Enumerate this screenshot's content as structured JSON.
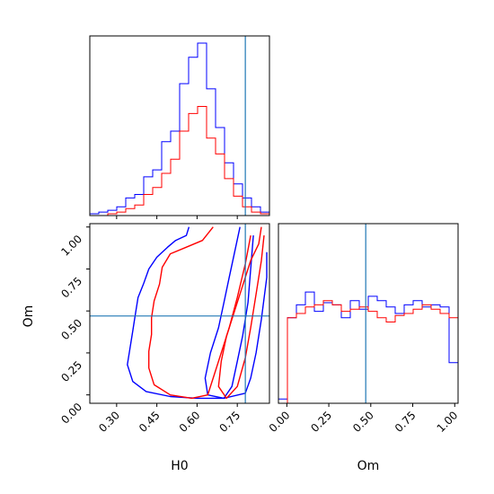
{
  "colors": {
    "series1": "#0000ff",
    "series2": "#ff0000",
    "truth": "#1f77b4",
    "frame": "#000000"
  },
  "chart_data": [
    {
      "type": "histogram",
      "panel": "H0 marginal",
      "xlim": [
        0.2,
        0.87
      ],
      "truth": 0.78,
      "bin_edges": [
        0.2,
        0.2335,
        0.267,
        0.3005,
        0.334,
        0.3675,
        0.401,
        0.4345,
        0.468,
        0.5015,
        0.535,
        0.5685,
        0.602,
        0.6355,
        0.669,
        0.7025,
        0.736,
        0.7695,
        0.803,
        0.8365,
        0.87
      ],
      "series": [
        {
          "color": "blue",
          "values": [
            0.01,
            0.02,
            0.03,
            0.05,
            0.1,
            0.12,
            0.22,
            0.26,
            0.42,
            0.48,
            0.75,
            0.9,
            0.98,
            0.72,
            0.5,
            0.3,
            0.18,
            0.1,
            0.05,
            0.02
          ]
        },
        {
          "color": "red",
          "values": [
            0.0,
            0.0,
            0.01,
            0.02,
            0.04,
            0.06,
            0.12,
            0.16,
            0.24,
            0.32,
            0.48,
            0.58,
            0.62,
            0.44,
            0.35,
            0.21,
            0.11,
            0.05,
            0.02,
            0.01
          ]
        }
      ]
    },
    {
      "type": "contour",
      "panel": "H0 vs Om",
      "xlabel": "H0",
      "ylabel": "Om",
      "xlim": [
        0.2,
        0.87
      ],
      "ylim": [
        -0.05,
        1.02
      ],
      "xticks": [
        "0.30",
        "0.45",
        "0.60",
        "0.75"
      ],
      "yticks": [
        "0.00",
        "0.25",
        "0.50",
        "0.75",
        "1.00"
      ],
      "truth": {
        "x": 0.78,
        "y": 0.47
      },
      "contours": [
        {
          "color": "blue",
          "level": "outer",
          "points": [
            [
              0.57,
              1.0
            ],
            [
              0.56,
              0.95
            ],
            [
              0.52,
              0.92
            ],
            [
              0.49,
              0.88
            ],
            [
              0.45,
              0.82
            ],
            [
              0.42,
              0.75
            ],
            [
              0.4,
              0.66
            ],
            [
              0.38,
              0.58
            ],
            [
              0.37,
              0.48
            ],
            [
              0.36,
              0.38
            ],
            [
              0.35,
              0.28
            ],
            [
              0.34,
              0.18
            ],
            [
              0.36,
              0.08
            ],
            [
              0.41,
              0.02
            ],
            [
              0.5,
              -0.01
            ],
            [
              0.6,
              -0.02
            ],
            [
              0.7,
              -0.02
            ],
            [
              0.78,
              0.01
            ],
            [
              0.8,
              0.1
            ],
            [
              0.82,
              0.25
            ],
            [
              0.84,
              0.45
            ],
            [
              0.86,
              0.7
            ],
            [
              0.86,
              0.85
            ]
          ]
        },
        {
          "color": "blue",
          "level": "inner",
          "points": [
            [
              0.76,
              1.0
            ],
            [
              0.74,
              0.85
            ],
            [
              0.72,
              0.7
            ],
            [
              0.7,
              0.55
            ],
            [
              0.68,
              0.4
            ],
            [
              0.65,
              0.25
            ],
            [
              0.63,
              0.1
            ],
            [
              0.64,
              0.0
            ],
            [
              0.7,
              -0.02
            ],
            [
              0.73,
              0.05
            ],
            [
              0.75,
              0.2
            ],
            [
              0.77,
              0.35
            ],
            [
              0.79,
              0.55
            ],
            [
              0.8,
              0.75
            ],
            [
              0.81,
              0.95
            ]
          ]
        },
        {
          "color": "red",
          "level": "outer",
          "points": [
            [
              0.66,
              1.0
            ],
            [
              0.62,
              0.92
            ],
            [
              0.56,
              0.88
            ],
            [
              0.5,
              0.84
            ],
            [
              0.47,
              0.76
            ],
            [
              0.46,
              0.66
            ],
            [
              0.44,
              0.56
            ],
            [
              0.43,
              0.46
            ],
            [
              0.43,
              0.36
            ],
            [
              0.42,
              0.26
            ],
            [
              0.42,
              0.16
            ],
            [
              0.44,
              0.06
            ],
            [
              0.5,
              0.0
            ],
            [
              0.58,
              -0.02
            ],
            [
              0.64,
              0.0
            ],
            [
              0.66,
              0.1
            ],
            [
              0.69,
              0.25
            ],
            [
              0.72,
              0.4
            ],
            [
              0.75,
              0.58
            ],
            [
              0.78,
              0.78
            ],
            [
              0.8,
              0.95
            ]
          ]
        },
        {
          "color": "red",
          "level": "inner",
          "points": [
            [
              0.84,
              1.0
            ],
            [
              0.83,
              0.9
            ],
            [
              0.8,
              0.8
            ],
            [
              0.77,
              0.65
            ],
            [
              0.74,
              0.5
            ],
            [
              0.71,
              0.35
            ],
            [
              0.69,
              0.2
            ],
            [
              0.68,
              0.05
            ],
            [
              0.71,
              -0.02
            ],
            [
              0.75,
              0.05
            ],
            [
              0.78,
              0.22
            ],
            [
              0.8,
              0.4
            ],
            [
              0.82,
              0.6
            ],
            [
              0.84,
              0.8
            ],
            [
              0.85,
              0.95
            ]
          ]
        }
      ]
    },
    {
      "type": "histogram",
      "panel": "Om marginal",
      "xlabel": "Om",
      "xlim": [
        -0.05,
        1.02
      ],
      "xticks": [
        "0.00",
        "0.25",
        "0.50",
        "0.75",
        "1.00"
      ],
      "truth": 0.47,
      "bin_edges": [
        -0.05,
        0.0035,
        0.057,
        0.1105,
        0.164,
        0.2175,
        0.271,
        0.3245,
        0.378,
        0.4315,
        0.485,
        0.5385,
        0.592,
        0.6455,
        0.699,
        0.7525,
        0.806,
        0.8595,
        0.913,
        0.9665,
        1.02
      ],
      "series": [
        {
          "color": "blue",
          "values": [
            0.02,
            0.4,
            0.46,
            0.52,
            0.43,
            0.47,
            0.46,
            0.4,
            0.48,
            0.44,
            0.5,
            0.48,
            0.45,
            0.42,
            0.46,
            0.48,
            0.45,
            0.46,
            0.45,
            0.19
          ]
        },
        {
          "color": "red",
          "values": [
            0.0,
            0.4,
            0.42,
            0.45,
            0.46,
            0.48,
            0.46,
            0.43,
            0.44,
            0.45,
            0.43,
            0.4,
            0.38,
            0.41,
            0.42,
            0.44,
            0.46,
            0.44,
            0.42,
            0.4
          ]
        }
      ]
    }
  ]
}
